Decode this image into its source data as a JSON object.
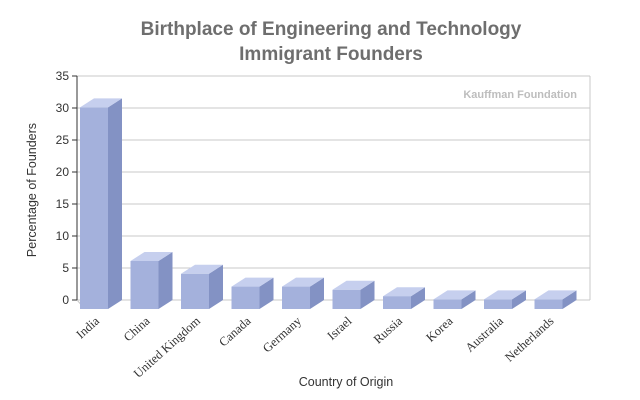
{
  "chart_data": {
    "type": "bar",
    "title": [
      "Birthplace of Engineering and Technology",
      "Immigrant Founders"
    ],
    "xlabel": "Country of Origin",
    "ylabel": "Percentage of Founders",
    "source": "Kauffman Foundation",
    "categories": [
      "India",
      "China",
      "United Kingdom",
      "Canada",
      "Germany",
      "Israel",
      "Russia",
      "Korea",
      "Australia",
      "Netherlands"
    ],
    "values": [
      31.5,
      7.5,
      5.5,
      3.5,
      3.5,
      3.0,
      2.0,
      1.5,
      1.5,
      1.5
    ],
    "ylim": [
      0,
      35
    ],
    "yticks": [
      0,
      5,
      10,
      15,
      20,
      25,
      30,
      35
    ],
    "grid": true,
    "colors": {
      "bar_front": "#a4b1dc",
      "bar_side": "#8392c4",
      "bar_top": "#c6cfee",
      "grid": "#c9c9c9",
      "axis": "#333333",
      "title": "#6e6e6e",
      "source": "#bdbdbd"
    }
  }
}
